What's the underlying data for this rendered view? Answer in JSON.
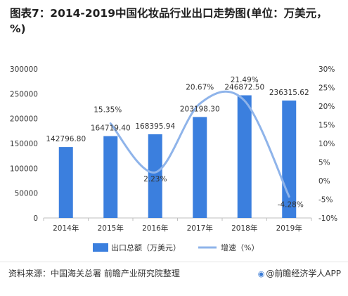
{
  "title": "图表7：2014-2019中国化妆品行业出口走势图(单位：万美元，%)",
  "source": "资料来源：中国海关总署 前瞻产业研究院整理",
  "brand": "@前瞻经济学人APP",
  "colors": {
    "bar": "#3b7fde",
    "line": "#8fb4ea",
    "axis": "#bfbfbf",
    "text": "#333333"
  },
  "chart_data": {
    "type": "bar",
    "categories": [
      "2014年",
      "2015年",
      "2016年",
      "2017年",
      "2018年",
      "2019年"
    ],
    "series": [
      {
        "name": "出口总额（万美元）",
        "type": "bar",
        "axis": "left",
        "values": [
          142796.8,
          164719.4,
          168395.94,
          203198.3,
          246872.5,
          236315.62
        ],
        "labels": [
          "142796.80",
          "164719.40",
          "168395.94",
          "203198.30",
          "246872.50",
          "236315.62"
        ]
      },
      {
        "name": "增速（%）",
        "type": "line",
        "axis": "right",
        "values": [
          null,
          15.35,
          2.23,
          20.67,
          21.49,
          -4.28
        ],
        "labels": [
          "",
          "15.35%",
          "2.23%",
          "20.67%",
          "21.49%",
          "-4.28%"
        ]
      }
    ],
    "y_left": {
      "min": 0,
      "max": 300000,
      "ticks": [
        "0",
        "50000",
        "100000",
        "150000",
        "200000",
        "250000",
        "300000"
      ]
    },
    "y_right": {
      "min": -10,
      "max": 30,
      "ticks": [
        "-10%",
        "-5%",
        "0%",
        "5%",
        "10%",
        "15%",
        "20%",
        "25%",
        "30%"
      ]
    },
    "legend": "bottom",
    "grid": false
  }
}
